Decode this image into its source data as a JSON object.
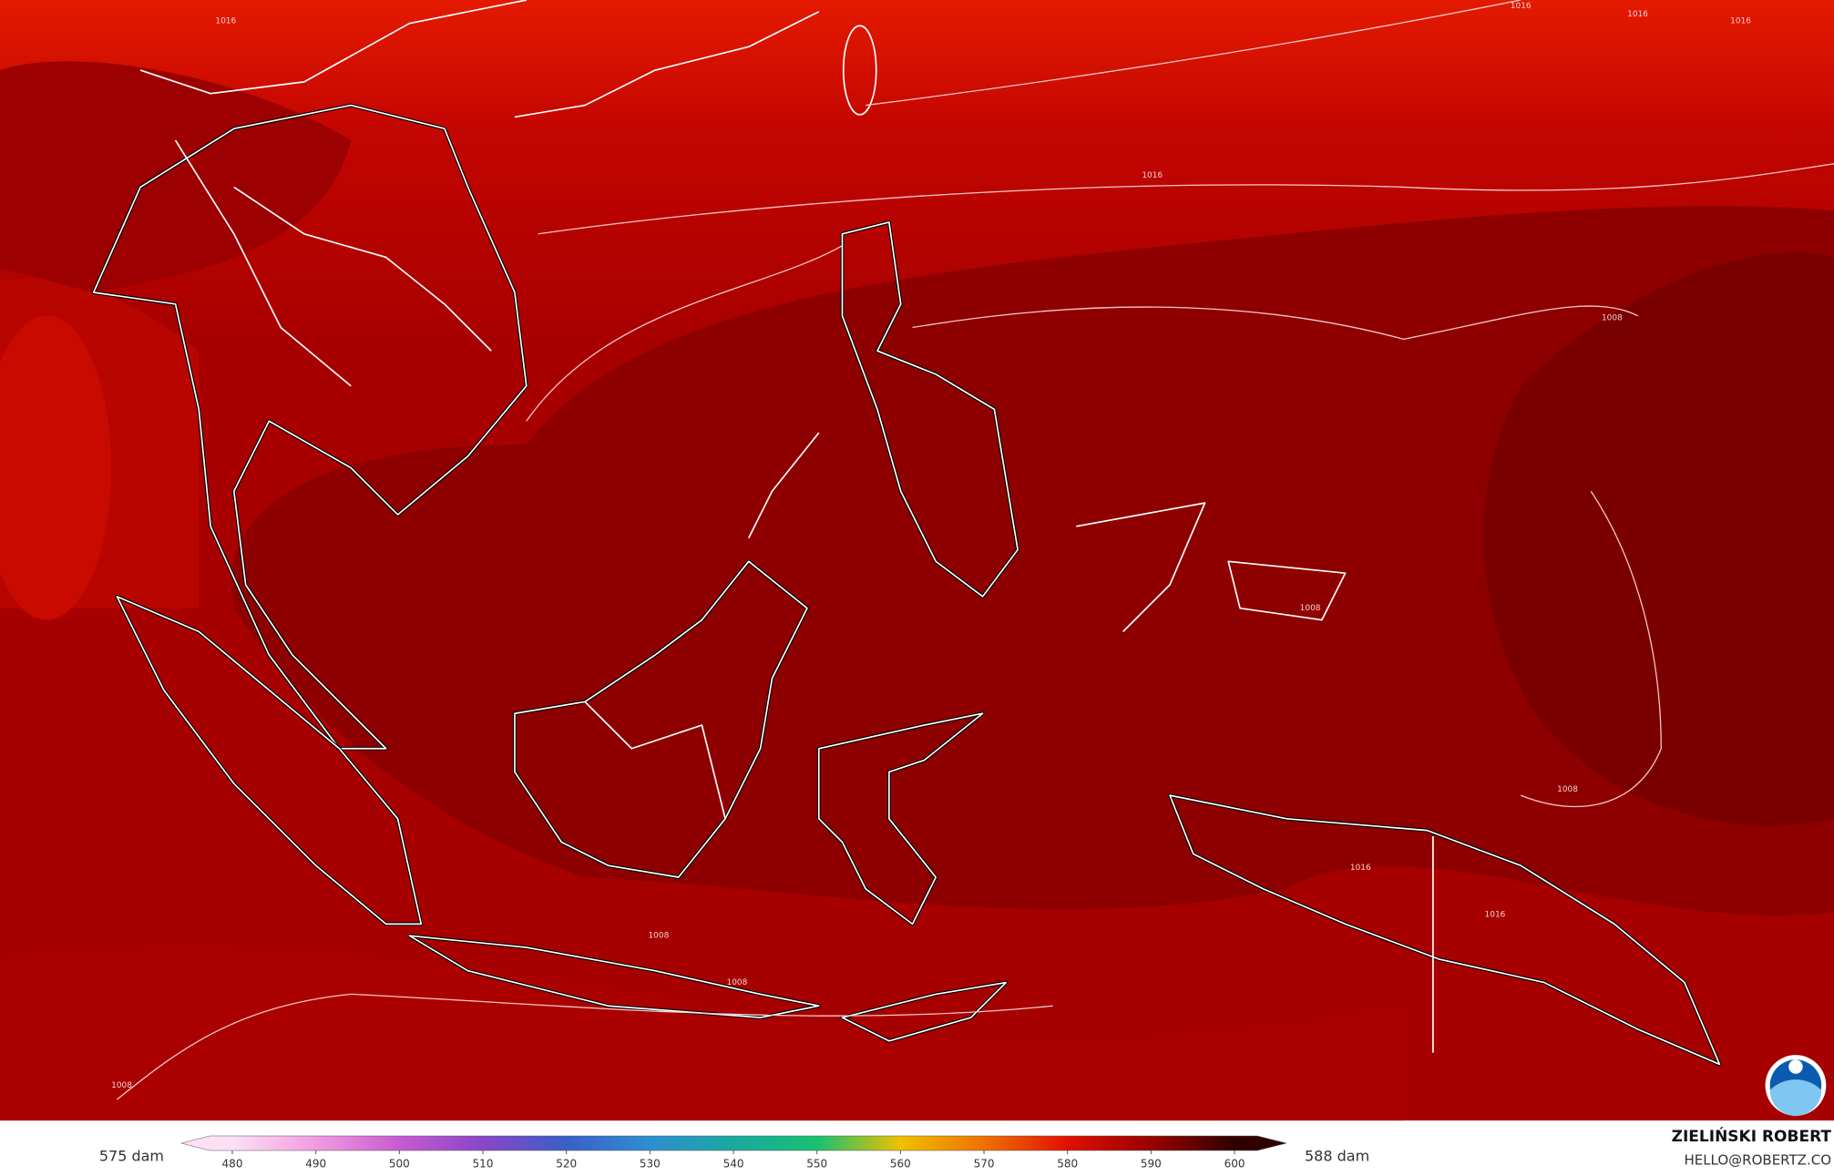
{
  "legend": {
    "min_label": "575 dam",
    "max_label": "588 dam",
    "ticks": [
      480,
      490,
      500,
      510,
      520,
      530,
      540,
      550,
      560,
      570,
      580,
      590,
      600
    ],
    "colors": [
      "#fde0f4",
      "#f29be0",
      "#c85ad0",
      "#8a45c8",
      "#3a5fc8",
      "#2f8ed0",
      "#1aa8a0",
      "#18c070",
      "#f0c000",
      "#f07000",
      "#e01000",
      "#9a0000",
      "#300000"
    ]
  },
  "isobar_labels": [
    1016,
    1016,
    1016,
    1016,
    1016,
    1008,
    1008,
    1008,
    1008,
    1008,
    1008,
    1016,
    1016
  ],
  "credit": {
    "name": "ZIELIŃSKI ROBERT",
    "email": "HELLO@ROBERTZ.CO"
  }
}
